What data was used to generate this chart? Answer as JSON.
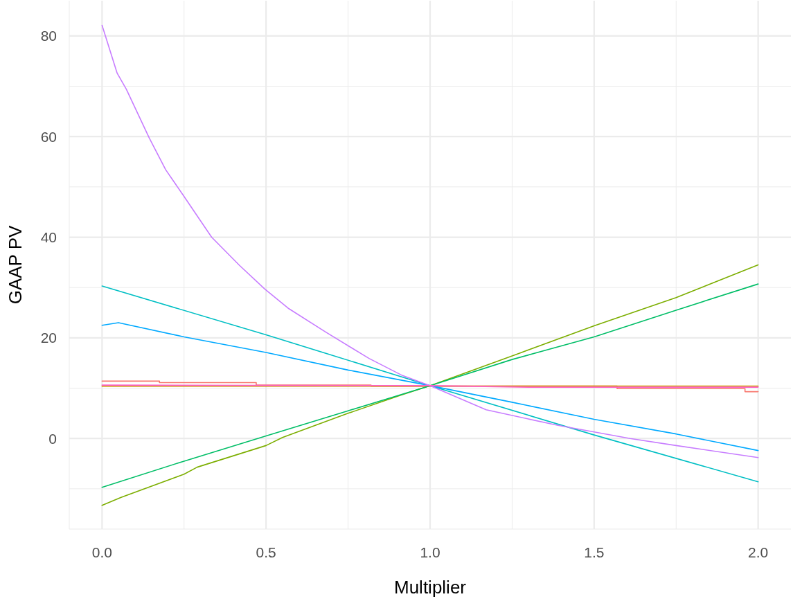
{
  "chart_data": {
    "type": "line",
    "xlabel": "Multiplier",
    "ylabel": "GAAP PV",
    "xlim": [
      -0.1,
      2.1
    ],
    "xticks": [
      {
        "value": 0,
        "label": "0.0"
      },
      {
        "value": 0.5,
        "label": "0.5"
      },
      {
        "value": 1,
        "label": "1.0"
      },
      {
        "value": 1.5,
        "label": "1.5"
      },
      {
        "value": 2,
        "label": "2.0"
      }
    ],
    "ylim": [
      -18,
      87
    ],
    "yticks": [
      0,
      20,
      40,
      60,
      80
    ],
    "grid": true,
    "series": [
      {
        "color": "#f8766d",
        "x": [
          0,
          0.175,
          0.175,
          0.47,
          0.47,
          0.82,
          0.82,
          1.57,
          1.57,
          1.96,
          1.96,
          2
        ],
        "values": [
          11.4,
          11.4,
          11.1,
          11.1,
          10.6,
          10.6,
          10.4,
          10.4,
          9.9,
          9.9,
          9.3,
          9.3
        ]
      },
      {
        "color": "#cd9600",
        "x": [
          0,
          2
        ],
        "values": [
          10.4,
          10.4
        ]
      },
      {
        "color": "#7cae00",
        "x": [
          0,
          0.058,
          0.25,
          0.29,
          0.5,
          0.55,
          0.75,
          0.91,
          1,
          1.25,
          1.5,
          1.75,
          2
        ],
        "values": [
          -13.3,
          -11.7,
          -7.1,
          -5.7,
          -1.4,
          0.2,
          5.0,
          8.6,
          10.5,
          16.4,
          22.4,
          28.0,
          34.5
        ]
      },
      {
        "color": "#00be67",
        "x": [
          0,
          0.25,
          0.5,
          0.75,
          1,
          1.25,
          1.5,
          1.75,
          2
        ],
        "values": [
          -9.7,
          -4.5,
          0.5,
          5.5,
          10.5,
          15.7,
          20.2,
          25.5,
          30.7
        ]
      },
      {
        "color": "#00bfc4",
        "x": [
          0,
          0.5,
          1,
          1.5,
          2
        ],
        "values": [
          30.3,
          20.6,
          10.5,
          0.7,
          -8.6
        ]
      },
      {
        "color": "#00a9ff",
        "x": [
          0,
          0.05,
          0.25,
          0.5,
          0.75,
          1,
          1.25,
          1.5,
          1.75,
          2
        ],
        "values": [
          22.5,
          23.0,
          20.2,
          17.1,
          13.6,
          10.5,
          7.2,
          3.8,
          0.9,
          -2.4
        ]
      },
      {
        "color": "#c77cff",
        "x": [
          0,
          0.046,
          0.074,
          0.144,
          0.194,
          0.25,
          0.334,
          0.419,
          0.496,
          0.567,
          0.683,
          0.814,
          0.916,
          1.0,
          1.171,
          1.39,
          1.61,
          1.75,
          2.0
        ],
        "values": [
          82.1,
          72.6,
          69.4,
          59.7,
          53.4,
          48.1,
          40.0,
          34.4,
          29.7,
          25.9,
          21.1,
          15.9,
          12.5,
          10.5,
          5.7,
          2.6,
          0,
          -1.4,
          -3.8
        ]
      },
      {
        "color": "#ff61cc",
        "x": [
          0,
          1,
          1.3,
          2
        ],
        "values": [
          10.6,
          10.5,
          10.2,
          10.2
        ]
      }
    ]
  }
}
